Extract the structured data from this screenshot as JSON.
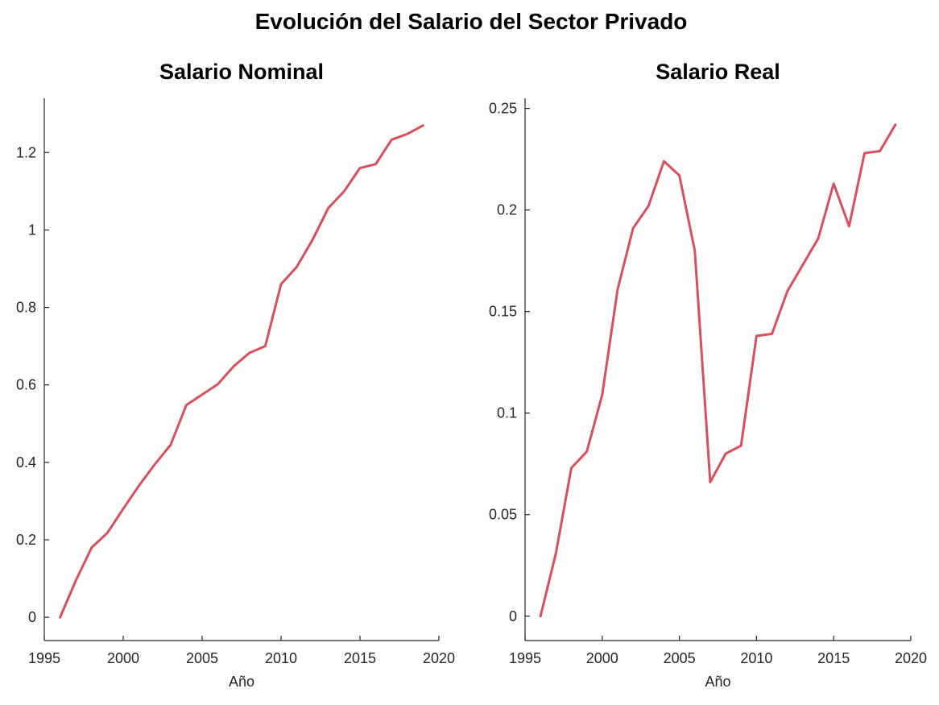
{
  "figure": {
    "title": "Evolución del Salario del Sector Privado",
    "line_color": "#d4505e"
  },
  "chart_data": [
    {
      "type": "line",
      "title": "Salario Nominal",
      "xlabel": "Año",
      "ylabel": "",
      "xlim": [
        1995,
        2020
      ],
      "ylim": [
        -0.06,
        1.34
      ],
      "xticks": [
        1995,
        2000,
        2005,
        2010,
        2015,
        2020
      ],
      "xtick_labels": [
        "1995",
        "2000",
        "2005",
        "2010",
        "2015",
        "2020"
      ],
      "yticks": [
        0,
        0.2,
        0.4,
        0.6,
        0.8,
        1,
        1.2
      ],
      "ytick_labels": [
        "0",
        "0.2",
        "0.4",
        "0.6",
        "0.8",
        "1",
        "1.2"
      ],
      "grid": false,
      "series": [
        {
          "x": [
            1996,
            1997,
            1998,
            1999,
            2000,
            2001,
            2002,
            2003,
            2004,
            2005,
            2006,
            2007,
            2008,
            2009,
            2010,
            2011,
            2012,
            2013,
            2014,
            2015,
            2016,
            2017,
            2018,
            2019
          ],
          "y": [
            0.0,
            0.095,
            0.18,
            0.218,
            0.28,
            0.34,
            0.395,
            0.445,
            0.548,
            0.575,
            0.602,
            0.648,
            0.683,
            0.7,
            0.86,
            0.905,
            0.975,
            1.057,
            1.1,
            1.16,
            1.17,
            1.233,
            1.248,
            1.27
          ]
        }
      ]
    },
    {
      "type": "line",
      "title": "Salario Real",
      "xlabel": "Año",
      "ylabel": "",
      "xlim": [
        1995,
        2020
      ],
      "ylim": [
        -0.012,
        0.255
      ],
      "xticks": [
        1995,
        2000,
        2005,
        2010,
        2015,
        2020
      ],
      "xtick_labels": [
        "1995",
        "2000",
        "2005",
        "2010",
        "2015",
        "2020"
      ],
      "yticks": [
        0,
        0.05,
        0.1,
        0.15,
        0.2,
        0.25
      ],
      "ytick_labels": [
        "0",
        "0.05",
        "0.1",
        "0.15",
        "0.2",
        "0.25"
      ],
      "grid": false,
      "series": [
        {
          "x": [
            1996,
            1997,
            1998,
            1999,
            2000,
            2001,
            2002,
            2003,
            2004,
            2005,
            2006,
            2007,
            2008,
            2009,
            2010,
            2011,
            2012,
            2013,
            2014,
            2015,
            2016,
            2017,
            2018,
            2019
          ],
          "y": [
            0.0,
            0.031,
            0.073,
            0.081,
            0.109,
            0.161,
            0.191,
            0.202,
            0.224,
            0.217,
            0.18,
            0.066,
            0.08,
            0.084,
            0.138,
            0.139,
            0.16,
            0.173,
            0.186,
            0.213,
            0.192,
            0.228,
            0.229,
            0.242
          ]
        }
      ]
    }
  ]
}
